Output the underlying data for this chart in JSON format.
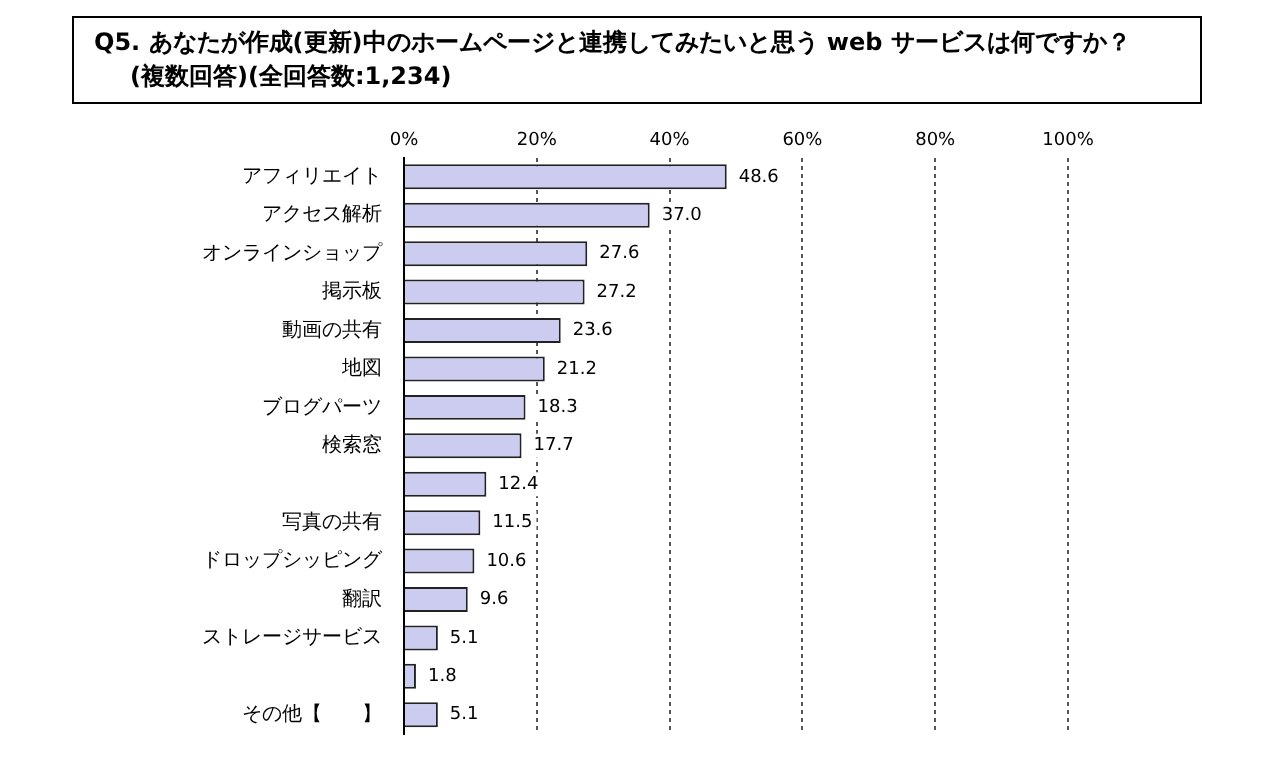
{
  "chart_data": {
    "type": "bar",
    "orientation": "horizontal",
    "title": "Q5.  あなたが作成(更新)中のホームページと連携してみたいと思う web サービスは何ですか？",
    "subtitle": "(複数回答)(全回答数:1,234)",
    "categories": [
      "アフィリエイト",
      "アクセス解析",
      "オンラインショップ",
      "掲示板",
      "動画の共有",
      "地図",
      "ブログパーツ",
      "検索窓",
      null,
      "写真の共有",
      "ドロップシッピング",
      "翻訳",
      "ストレージサービス",
      null,
      "その他【　　】"
    ],
    "values": [
      48.6,
      37.0,
      27.6,
      27.2,
      23.6,
      21.2,
      18.3,
      17.7,
      12.4,
      11.5,
      10.6,
      9.6,
      5.1,
      1.8,
      5.1
    ],
    "color": "#ccccf0",
    "xlim": [
      0,
      100
    ],
    "xticks": [
      {
        "value": 0,
        "label": "0%"
      },
      {
        "value": 20,
        "label": "20%"
      },
      {
        "value": 40,
        "label": "40%"
      },
      {
        "value": 60,
        "label": "60%"
      },
      {
        "value": 80,
        "label": "80%"
      },
      {
        "value": 100,
        "label": "100%"
      }
    ],
    "value_labels": [
      "48.6",
      "37.0",
      "27.6",
      "27.2",
      "23.6",
      "21.2",
      "18.3",
      "17.7",
      "12.4",
      "11.5",
      "10.6",
      "9.6",
      "5.1",
      "1.8",
      "5.1"
    ],
    "grid": "x",
    "legend": false
  }
}
